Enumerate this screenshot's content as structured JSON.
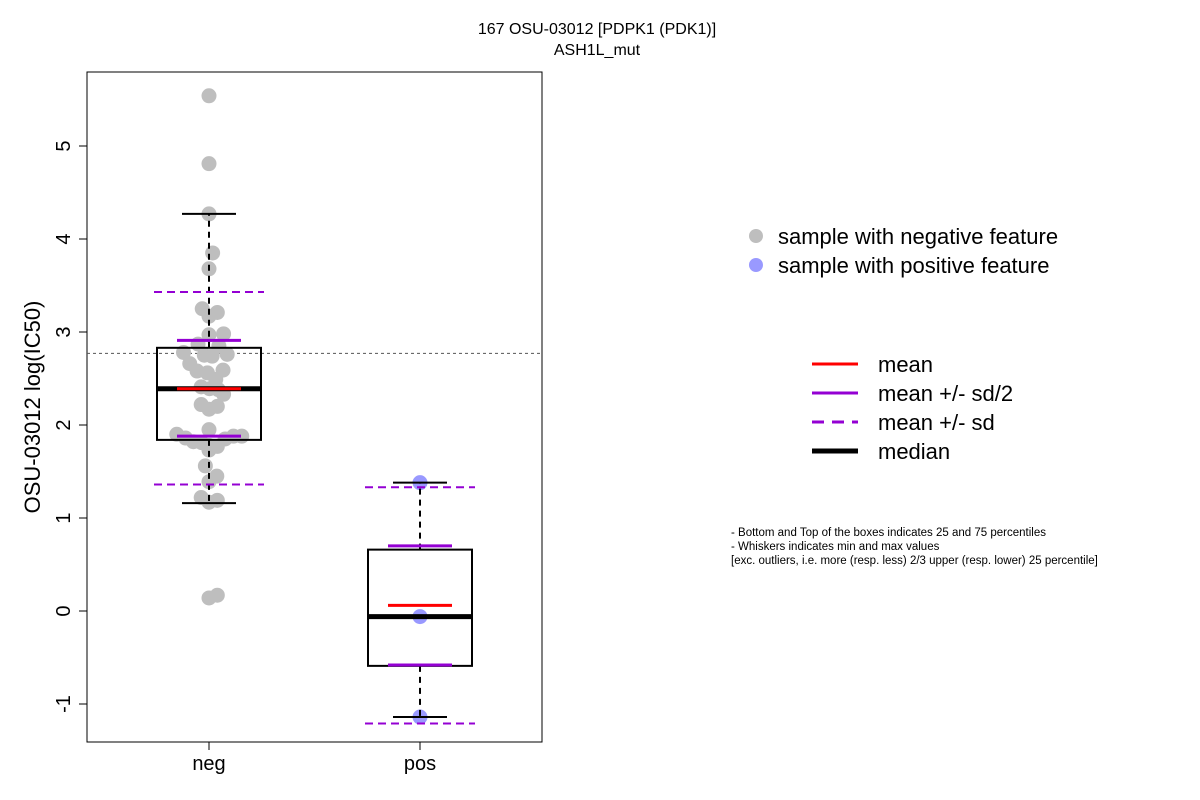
{
  "chart_data": {
    "type": "boxplot",
    "title": "167 OSU-03012 [PDPK1 (PDK1)]",
    "subtitle": "ASH1L_mut",
    "ylabel": "OSU-03012 log(IC50)",
    "xlabel": "",
    "categories": [
      "neg",
      "pos"
    ],
    "ylim": [
      -1.4,
      5.8
    ],
    "yticks": [
      -1,
      0,
      1,
      2,
      3,
      4,
      5
    ],
    "reference_line": 2.77,
    "grid": false,
    "legend_position": "right",
    "groups": [
      {
        "name": "neg",
        "q1": 1.84,
        "median": 2.39,
        "q3": 2.83,
        "whisker_low": 1.16,
        "whisker_high": 4.27,
        "mean": 2.39,
        "sd_half_low": 1.88,
        "sd_half_high": 2.91,
        "sd_low": 1.36,
        "sd_high": 3.43,
        "point_color": "#bebebe",
        "points": [
          {
            "x": 0.0,
            "y": 5.54
          },
          {
            "x": 0.0,
            "y": 4.81
          },
          {
            "x": 0.0,
            "y": 4.27
          },
          {
            "x": 0.07,
            "y": 3.85
          },
          {
            "x": 0.0,
            "y": 3.68
          },
          {
            "x": -0.13,
            "y": 3.25
          },
          {
            "x": 0.16,
            "y": 3.21
          },
          {
            "x": 0.0,
            "y": 3.17
          },
          {
            "x": 0.28,
            "y": 2.98
          },
          {
            "x": 0.0,
            "y": 2.97
          },
          {
            "x": -0.21,
            "y": 2.87
          },
          {
            "x": 0.19,
            "y": 2.85
          },
          {
            "x": -0.49,
            "y": 2.78
          },
          {
            "x": -0.09,
            "y": 2.75
          },
          {
            "x": 0.06,
            "y": 2.74
          },
          {
            "x": 0.35,
            "y": 2.76
          },
          {
            "x": -0.37,
            "y": 2.66
          },
          {
            "x": -0.23,
            "y": 2.58
          },
          {
            "x": -0.03,
            "y": 2.56
          },
          {
            "x": 0.27,
            "y": 2.59
          },
          {
            "x": 0.13,
            "y": 2.49
          },
          {
            "x": -0.15,
            "y": 2.41
          },
          {
            "x": 0.01,
            "y": 2.39
          },
          {
            "x": 0.18,
            "y": 2.38
          },
          {
            "x": 0.28,
            "y": 2.33
          },
          {
            "x": -0.15,
            "y": 2.22
          },
          {
            "x": 0.0,
            "y": 2.17
          },
          {
            "x": 0.16,
            "y": 2.2
          },
          {
            "x": 0.0,
            "y": 1.95
          },
          {
            "x": -0.62,
            "y": 1.9
          },
          {
            "x": -0.45,
            "y": 1.86
          },
          {
            "x": -0.3,
            "y": 1.82
          },
          {
            "x": -0.14,
            "y": 1.81
          },
          {
            "x": 0.0,
            "y": 1.78
          },
          {
            "x": 0.16,
            "y": 1.77
          },
          {
            "x": 0.31,
            "y": 1.85
          },
          {
            "x": 0.47,
            "y": 1.88
          },
          {
            "x": 0.63,
            "y": 1.88
          },
          {
            "x": 0.0,
            "y": 1.73
          },
          {
            "x": -0.07,
            "y": 1.56
          },
          {
            "x": 0.15,
            "y": 1.45
          },
          {
            "x": 0.0,
            "y": 1.39
          },
          {
            "x": -0.15,
            "y": 1.22
          },
          {
            "x": 0.0,
            "y": 1.17
          },
          {
            "x": 0.16,
            "y": 1.19
          },
          {
            "x": 0.0,
            "y": 0.14
          },
          {
            "x": 0.16,
            "y": 0.17
          }
        ]
      },
      {
        "name": "pos",
        "q1": -0.59,
        "median": -0.06,
        "q3": 0.66,
        "whisker_low": -1.14,
        "whisker_high": 1.38,
        "mean": 0.06,
        "sd_half_low": -0.58,
        "sd_half_high": 0.7,
        "sd_low": -1.21,
        "sd_high": 1.33,
        "point_color": "#9999ff",
        "points": [
          {
            "x": 0.0,
            "y": 1.38
          },
          {
            "x": 0.0,
            "y": -0.06
          },
          {
            "x": 0.0,
            "y": -1.14
          }
        ]
      }
    ],
    "legend_points": [
      {
        "label": "sample with negative feature",
        "color": "#bebebe"
      },
      {
        "label": "sample with positive feature",
        "color": "#9999ff"
      }
    ],
    "legend_lines": [
      {
        "label": "mean",
        "color": "#ff0000",
        "style": "solid"
      },
      {
        "label": "mean +/- sd/2",
        "color": "#9400d3",
        "style": "solid"
      },
      {
        "label": "mean +/- sd",
        "color": "#9400d3",
        "style": "dashed"
      },
      {
        "label": "median",
        "color": "#000000",
        "style": "solid-thick"
      }
    ],
    "notes": [
      "- Bottom and Top of the boxes indicates 25 and 75 percentiles",
      "- Whiskers indicates min and max values",
      "[exc. outliers, i.e. more (resp. less) 2/3 upper (resp. lower) 25 percentile]"
    ]
  }
}
